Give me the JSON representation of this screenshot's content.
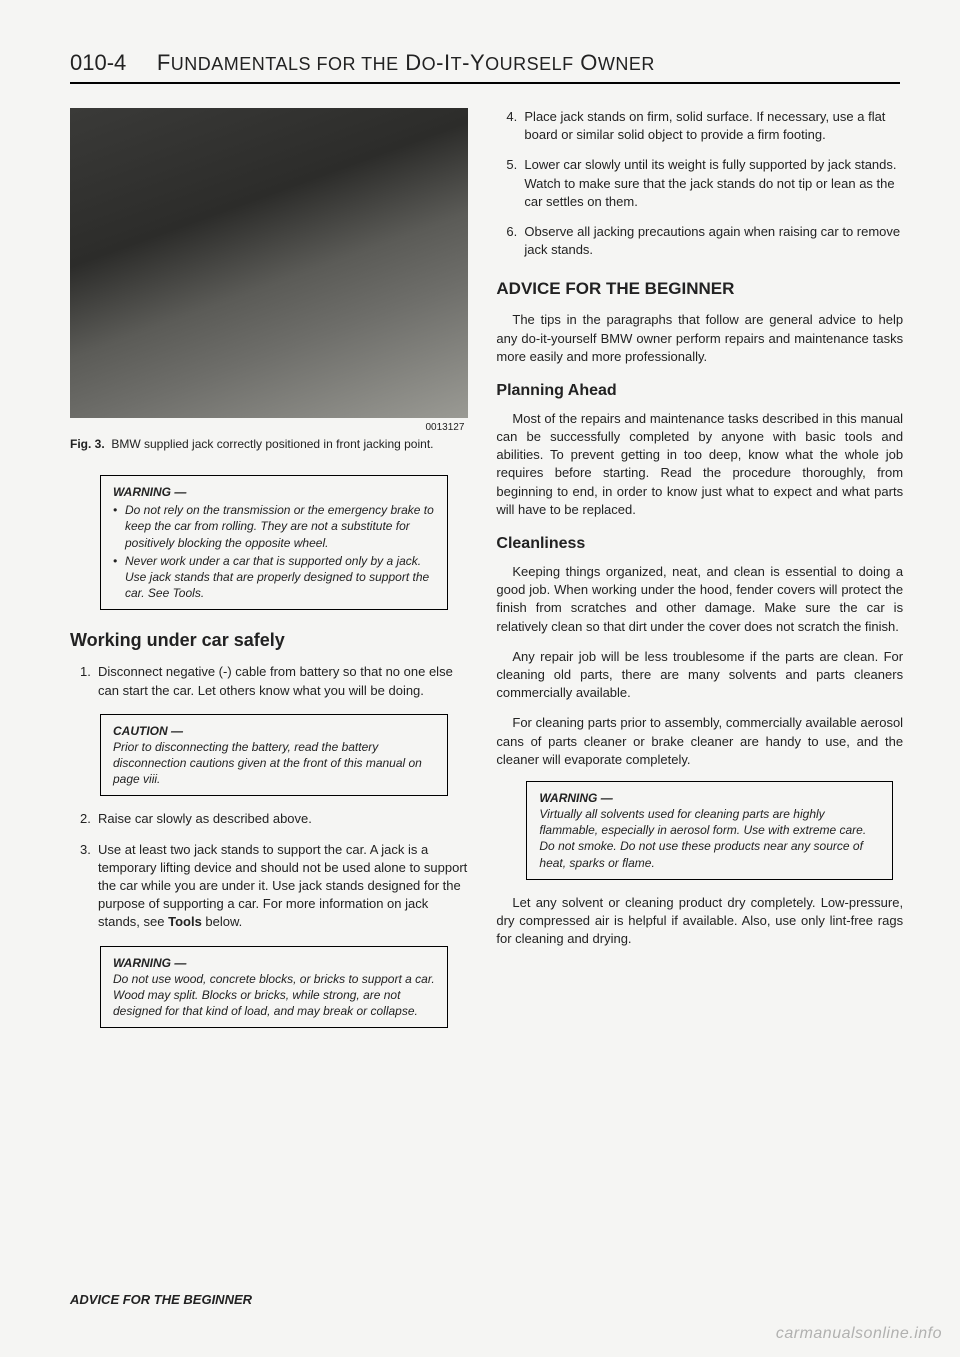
{
  "header": {
    "page_num": "010-4",
    "title_pre": "F",
    "title_sc1": "UNDAMENTALS FOR THE",
    "title_mid": " D",
    "title_sc2": "O",
    "title_mid2": "-I",
    "title_sc3": "T",
    "title_mid3": "-Y",
    "title_sc4": "OURSELF",
    "title_end": " O",
    "title_sc5": "WNER"
  },
  "figure": {
    "code": "0013127",
    "label": "Fig. 3.",
    "caption": "BMW supplied jack correctly positioned in front jacking point."
  },
  "warning1": {
    "title": "WARNING —",
    "items": [
      "Do not rely on the transmission or the emergency brake to keep the car from rolling. They are not a substitute for positively blocking the opposite wheel.",
      "Never work under a car that is supported only by a jack. Use jack stands that are properly designed to support the car. See Tools."
    ]
  },
  "section_left": "Working under car safely",
  "steps_left": [
    {
      "n": "1.",
      "t": "Disconnect negative (-) cable from battery so that no one else can start the car. Let others know what you will be doing."
    }
  ],
  "caution1": {
    "title": "CAUTION —",
    "text": "Prior to disconnecting the battery, read the battery disconnection cautions given at the front of this manual on page viii."
  },
  "steps_left2": [
    {
      "n": "2.",
      "t": "Raise car slowly as described above."
    },
    {
      "n": "3.",
      "t_a": "Use at least two jack stands to support the car. A jack is a temporary lifting device and should not be used alone to support the car while you are under it. Use jack stands designed for the purpose of supporting a car. For more information on jack stands, see ",
      "t_b": "Tools",
      "t_c": " below."
    }
  ],
  "warning2": {
    "title": "WARNING —",
    "text": "Do not use wood, concrete blocks, or bricks to support a car. Wood may split. Blocks or bricks, while strong, are not designed for that kind of load, and may break or collapse."
  },
  "steps_right": [
    {
      "n": "4.",
      "t": "Place jack stands on firm, solid surface. If necessary, use a flat board or similar solid object to provide a firm footing."
    },
    {
      "n": "5.",
      "t": "Lower car slowly until its weight is fully supported by jack stands. Watch to make sure that the jack stands do not tip or lean as the car settles on them."
    },
    {
      "n": "6.",
      "t": "Observe all jacking precautions again when raising car to remove jack stands."
    }
  ],
  "section_right": "ADVICE FOR THE BEGINNER",
  "intro_right": "The tips in the paragraphs that follow are general advice to help any do-it-yourself BMW owner perform repairs and maintenance tasks more easily and more professionally.",
  "sub_planning": "Planning Ahead",
  "planning_text": "Most of the repairs and maintenance tasks described in this manual can be successfully completed by anyone with basic tools and abilities. To prevent getting in too deep, know what the whole job requires before starting. Read the procedure thoroughly, from beginning to end, in order to know just what to expect and what parts will have to be replaced.",
  "sub_clean": "Cleanliness",
  "clean_text1": "Keeping things organized, neat, and clean is essential to doing a good job. When working under the hood, fender covers will protect the finish from scratches and other damage. Make sure the car is relatively clean so that dirt under the cover does not scratch the finish.",
  "clean_text2": "Any repair job will be less troublesome if the parts are clean. For cleaning old parts, there are many solvents and parts cleaners commercially available.",
  "clean_text3": "For cleaning parts prior to assembly, commercially available aerosol cans of parts cleaner or brake cleaner are handy to use, and the cleaner will evaporate completely.",
  "warning3": {
    "title": "WARNING —",
    "text": "Virtually all solvents used for cleaning parts are highly flammable, especially in aerosol form. Use with extreme care. Do not smoke. Do not use these products near any source of heat, sparks or flame."
  },
  "clean_text4": "Let any solvent or cleaning product dry completely. Low-pressure, dry compressed air is helpful if available. Also, use only lint-free rags for cleaning and drying.",
  "footer": "ADVICE FOR THE BEGINNER",
  "watermark": "carmanualsonline.info"
}
